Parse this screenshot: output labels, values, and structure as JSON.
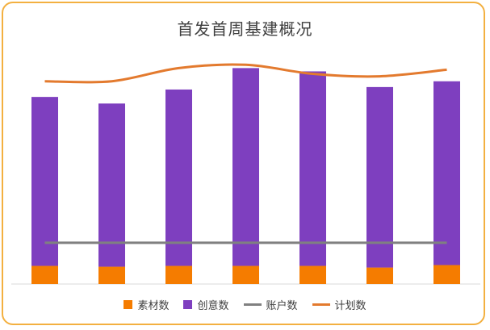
{
  "chart_data": {
    "type": "bar",
    "title": "首发首周基建概况",
    "categories": [
      "",
      "",
      "",
      "",
      "",
      "",
      ""
    ],
    "series": [
      {
        "name": "素材数",
        "kind": "stacked-bar",
        "color": "#f57c00",
        "values": [
          22,
          21,
          22,
          22,
          22,
          20,
          23
        ]
      },
      {
        "name": "创意数",
        "kind": "stacked-bar",
        "color": "#7e3fbf",
        "values": [
          205,
          198,
          214,
          240,
          236,
          219,
          223
        ]
      },
      {
        "name": "账户数",
        "kind": "line",
        "color": "#808080",
        "values": [
          50,
          50,
          50,
          50,
          50,
          50,
          50
        ]
      },
      {
        "name": "计划数",
        "kind": "smooth-line",
        "color": "#e37a2e",
        "values": [
          246,
          246,
          262,
          266,
          255,
          252,
          260
        ]
      }
    ],
    "ylim": [
      0,
      280
    ],
    "grid": false,
    "legend_position": "bottom"
  },
  "colors": {
    "border": "#f3b040",
    "axis": "#d9d9d9"
  }
}
